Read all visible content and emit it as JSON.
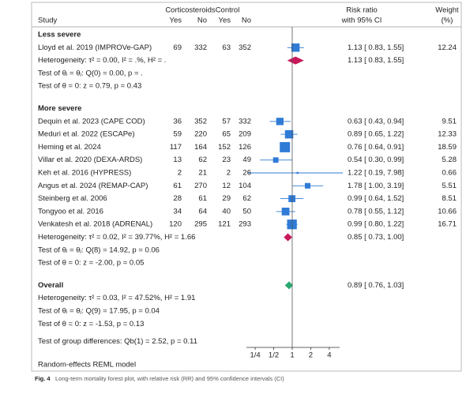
{
  "chart_data": {
    "type": "forest",
    "header": {
      "group1": "Corticosteroids",
      "group2": "Control",
      "study": "Study",
      "yes1": "Yes",
      "no1": "No",
      "yes2": "Yes",
      "no2": "No",
      "effect": "Risk ratio",
      "effect_ci": "with 95% CI",
      "weight": "Weight",
      "weight_unit": "(%)"
    },
    "groups": [
      {
        "name": "Less severe",
        "studies": [
          {
            "name": "Lloyd et al. 2019 (IMPROVe-GAP)",
            "yes1": 69,
            "no1": 332,
            "yes2": 63,
            "no2": 352,
            "rr": 1.13,
            "ci": [
              0.83,
              1.55
            ],
            "label": "1.13 [ 0.83, 1.55]",
            "weight": 12.24
          }
        ],
        "heterogeneity": "Heterogeneity: τ² = 0.00, I² = .%, H² = .",
        "rr": 1.13,
        "ci": [
          0.83,
          1.55
        ],
        "label": "1.13 [ 0.83, 1.55]",
        "tests": [
          "Test of θᵢ = θⱼ: Q(0) = 0.00, p = .",
          "Test of θ = 0: z = 0.79, p = 0.43"
        ]
      },
      {
        "name": "More severe",
        "studies": [
          {
            "name": "Dequin et al. 2023 (CAPE COD)",
            "yes1": 36,
            "no1": 352,
            "yes2": 57,
            "no2": 332,
            "rr": 0.63,
            "ci": [
              0.43,
              0.94
            ],
            "label": "0.63 [ 0.43, 0.94]",
            "weight": 9.51
          },
          {
            "name": "Meduri et al. 2022 (ESCAPe)",
            "yes1": 59,
            "no1": 220,
            "yes2": 65,
            "no2": 209,
            "rr": 0.89,
            "ci": [
              0.65,
              1.22
            ],
            "label": "0.89 [ 0.65, 1.22]",
            "weight": 12.33
          },
          {
            "name": "Heming et al. 2024",
            "yes1": 117,
            "no1": 164,
            "yes2": 152,
            "no2": 126,
            "rr": 0.76,
            "ci": [
              0.64,
              0.91
            ],
            "label": "0.76 [ 0.64, 0.91]",
            "weight": 18.59
          },
          {
            "name": "Villar et al. 2020 (DEXA-ARDS)",
            "yes1": 13,
            "no1": 62,
            "yes2": 23,
            "no2": 49,
            "rr": 0.54,
            "ci": [
              0.3,
              0.99
            ],
            "label": "0.54 [ 0.30, 0.99]",
            "weight": 5.28
          },
          {
            "name": "Keh et al. 2016 (HYPRESS)",
            "yes1": 2,
            "no1": 21,
            "yes2": 2,
            "no2": 26,
            "rr": 1.22,
            "ci": [
              0.19,
              7.98
            ],
            "label": "1.22 [ 0.19, 7.98]",
            "weight": 0.66
          },
          {
            "name": "Angus et al. 2024 (REMAP-CAP)",
            "yes1": 61,
            "no1": 270,
            "yes2": 12,
            "no2": 104,
            "rr": 1.78,
            "ci": [
              1.0,
              3.19
            ],
            "label": "1.78 [ 1.00, 3.19]",
            "weight": 5.51
          },
          {
            "name": "Steinberg et al. 2006",
            "yes1": 28,
            "no1": 61,
            "yes2": 29,
            "no2": 62,
            "rr": 0.99,
            "ci": [
              0.64,
              1.52
            ],
            "label": "0.99 [ 0.64, 1.52]",
            "weight": 8.51
          },
          {
            "name": "Tongyoo et al. 2016",
            "yes1": 34,
            "no1": 64,
            "yes2": 40,
            "no2": 50,
            "rr": 0.78,
            "ci": [
              0.55,
              1.12
            ],
            "label": "0.78 [ 0.55, 1.12]",
            "weight": 10.66
          },
          {
            "name": "Venkatesh et al. 2018 (ADRENAL)",
            "yes1": 120,
            "no1": 295,
            "yes2": 121,
            "no2": 293,
            "rr": 0.99,
            "ci": [
              0.8,
              1.22
            ],
            "label": "0.99 [ 0.80, 1.22]",
            "weight": 16.71
          }
        ],
        "heterogeneity": "Heterogeneity: τ² = 0.02, I² = 39.77%, H² = 1.66",
        "rr": 0.85,
        "ci": [
          0.73,
          1.0
        ],
        "label": "0.85 [ 0.73, 1.00]",
        "tests": [
          "Test of θᵢ = θⱼ: Q(8) = 14.92, p = 0.06",
          "Test of θ = 0: z = -2.00, p = 0.05"
        ]
      }
    ],
    "overall": {
      "name": "Overall",
      "heterogeneity": "Heterogeneity: τ² = 0.03, I² = 47.52%, H² = 1.91",
      "rr": 0.89,
      "ci": [
        0.76,
        1.03
      ],
      "label": "0.89 [ 0.76, 1.03]",
      "tests": [
        "Test of θᵢ = θⱼ: Q(9) = 17.95, p = 0.04",
        "Test of θ = 0: z = -1.53, p = 0.13"
      ]
    },
    "group_test": "Test of group differences: Qb(1) = 2.52, p = 0.11",
    "log_x": true,
    "xlim": [
      0.18,
      5.9
    ],
    "xticks": [
      {
        "value": 0.25,
        "label": "1/4"
      },
      {
        "value": 0.5,
        "label": "1/2"
      },
      1,
      2,
      4
    ],
    "square_color": "#2f7bd6",
    "subgroup_color": "#c8185a",
    "overall_color": "#2aa871",
    "note": "Random-effects REML model",
    "caption_label": "Fig. 4",
    "caption": "Long-term mortality forest plot, with relative risk (RR) and 95% confidence intervals (CI)"
  }
}
